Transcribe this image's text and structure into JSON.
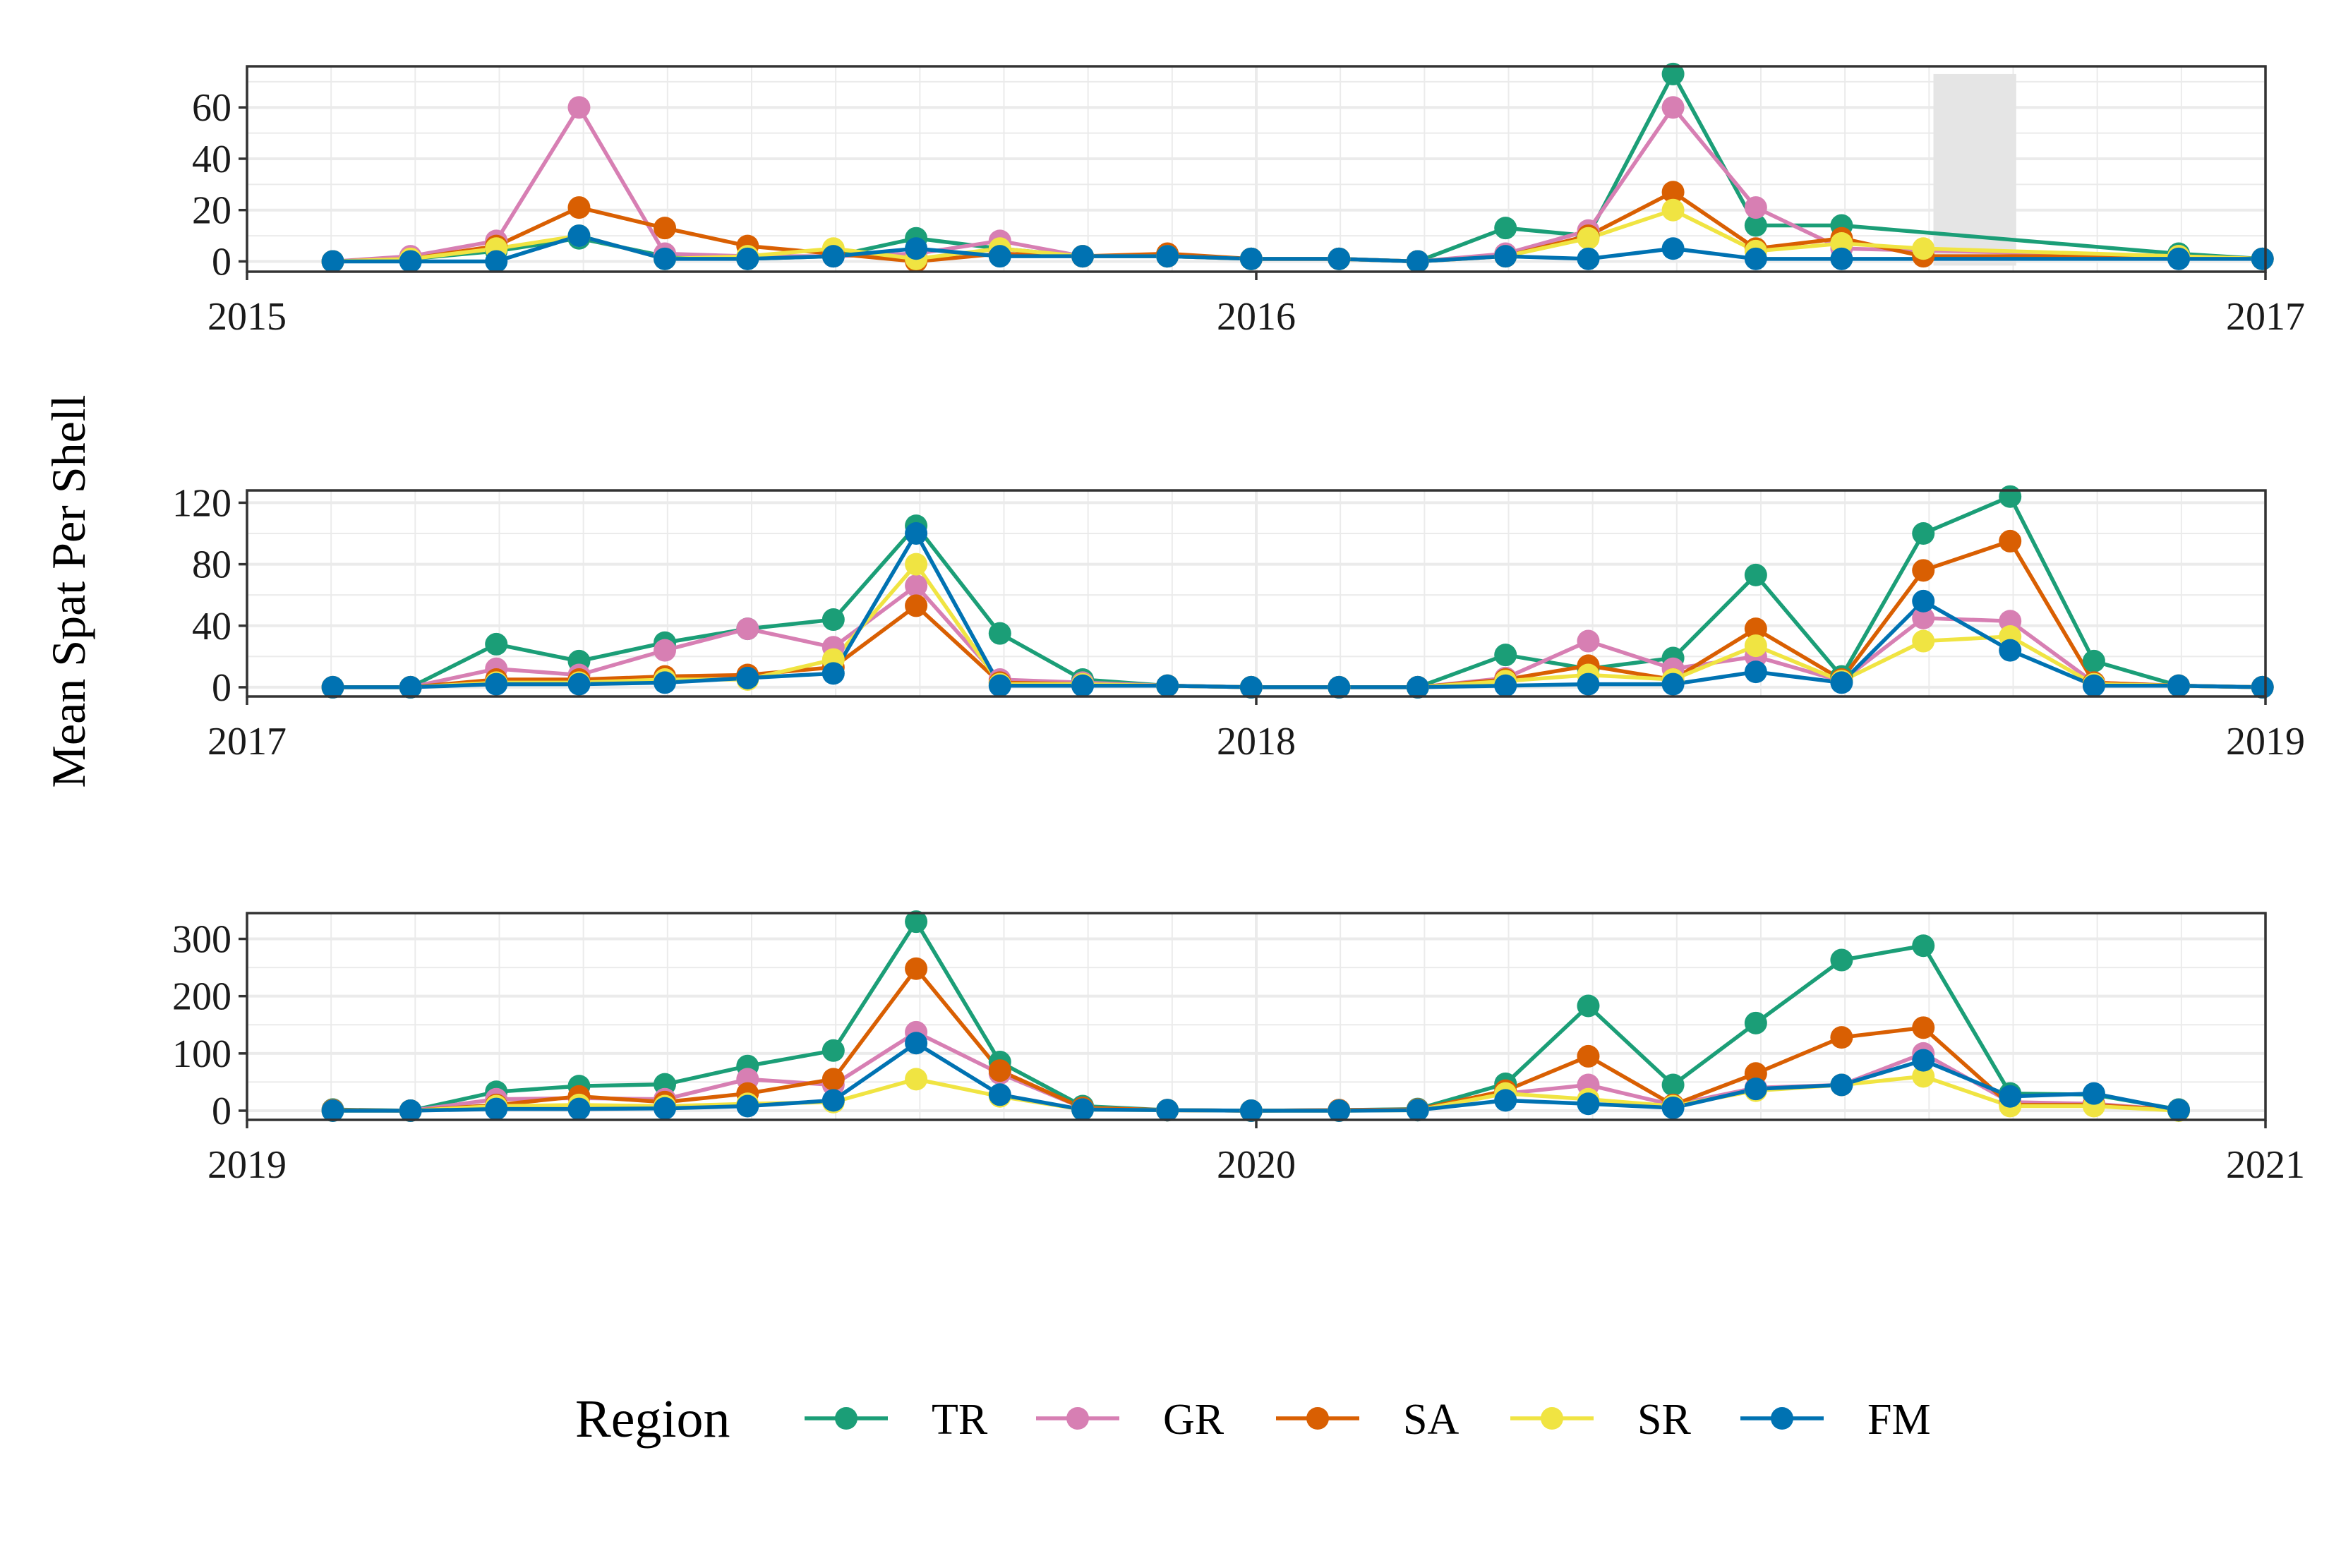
{
  "figure": {
    "ylabel": "Mean Spat Per Shell",
    "legend": {
      "title": "Region",
      "position": "bottom"
    }
  },
  "colors": {
    "TR": "#1b9e77",
    "GR": "#d77fb3",
    "SA": "#d95f02",
    "SR": "#f0e442",
    "FM": "#0072b2",
    "shade": "#e5e5e5"
  },
  "chart_data": [
    {
      "type": "line",
      "xlabel": "",
      "ylabel": "Mean Spat Per Shell",
      "xlim": [
        2015,
        2017
      ],
      "ylim": [
        -4,
        76
      ],
      "xticks": [
        2015,
        2016,
        2017
      ],
      "xtick_labels": [
        "2015",
        "2016",
        "2017"
      ],
      "yticks": [
        0,
        20,
        40,
        60
      ],
      "ytick_labels": [
        "0",
        "20",
        "40",
        "60"
      ],
      "grid": true,
      "shaded_interval": [
        2016.671,
        2016.753
      ],
      "x": [
        2015.085,
        2015.162,
        2015.247,
        2015.329,
        2015.414,
        2015.496,
        2015.581,
        2015.663,
        2015.746,
        2015.828,
        2015.912,
        2015.995,
        2016.082,
        2016.16,
        2016.247,
        2016.329,
        2016.413,
        2016.495,
        2016.58,
        2016.661,
        2016.747,
        2016.83,
        2016.914,
        2016.997
      ],
      "series": [
        {
          "name": "TR",
          "values": [
            0,
            1,
            4,
            9,
            2,
            1,
            2,
            9,
            5,
            2,
            2,
            1,
            1,
            0,
            13,
            10,
            73,
            14,
            14,
            null,
            null,
            null,
            3,
            1
          ]
        },
        {
          "name": "GR",
          "values": [
            0,
            2,
            8,
            60,
            3,
            2,
            2,
            3,
            8,
            2,
            2,
            1,
            1,
            0,
            3,
            12,
            60,
            21,
            5,
            null,
            null,
            null,
            2,
            1
          ]
        },
        {
          "name": "SA",
          "values": [
            0,
            1,
            6,
            21,
            13,
            6,
            3,
            0,
            3,
            2,
            3,
            1,
            1,
            0,
            2,
            10,
            27,
            5,
            9,
            2,
            null,
            null,
            2,
            1
          ]
        },
        {
          "name": "SR",
          "values": [
            0,
            1,
            5,
            10,
            1,
            2,
            5,
            1,
            5,
            2,
            2,
            1,
            1,
            0,
            2,
            9,
            20,
            4,
            7,
            5,
            null,
            null,
            2,
            1
          ]
        },
        {
          "name": "FM",
          "values": [
            0,
            0,
            0,
            10,
            1,
            1,
            2,
            5,
            2,
            2,
            2,
            1,
            1,
            0,
            2,
            1,
            5,
            1,
            1,
            null,
            null,
            null,
            1,
            1
          ]
        }
      ]
    },
    {
      "type": "line",
      "xlabel": "",
      "ylabel": "Mean Spat Per Shell",
      "xlim": [
        2017,
        2019
      ],
      "ylim": [
        -6,
        128
      ],
      "xticks": [
        2017,
        2018,
        2019
      ],
      "xtick_labels": [
        "2017",
        "2018",
        "2019"
      ],
      "yticks": [
        0,
        40,
        80,
        120
      ],
      "ytick_labels": [
        "0",
        "40",
        "80",
        "120"
      ],
      "grid": true,
      "x": [
        2017.085,
        2017.162,
        2017.247,
        2017.329,
        2017.414,
        2017.496,
        2017.581,
        2017.663,
        2017.746,
        2017.828,
        2017.912,
        2017.995,
        2018.082,
        2018.16,
        2018.247,
        2018.329,
        2018.413,
        2018.495,
        2018.58,
        2018.661,
        2018.747,
        2018.83,
        2018.914,
        2018.997
      ],
      "series": [
        {
          "name": "TR",
          "values": [
            0,
            0,
            28,
            17,
            29,
            38,
            44,
            105,
            35,
            5,
            1,
            0,
            0,
            0,
            21,
            12,
            19,
            73,
            7,
            100,
            124,
            17,
            1,
            0
          ]
        },
        {
          "name": "GR",
          "values": [
            0,
            0,
            12,
            8,
            24,
            38,
            26,
            66,
            5,
            3,
            1,
            0,
            0,
            0,
            6,
            30,
            12,
            20,
            4,
            45,
            43,
            3,
            1,
            0
          ]
        },
        {
          "name": "SA",
          "values": [
            0,
            0,
            5,
            5,
            7,
            8,
            13,
            53,
            3,
            2,
            1,
            0,
            0,
            0,
            5,
            14,
            5,
            38,
            5,
            76,
            95,
            3,
            1,
            0
          ]
        },
        {
          "name": "SR",
          "values": [
            0,
            0,
            3,
            3,
            5,
            5,
            18,
            80,
            2,
            2,
            1,
            0,
            0,
            0,
            4,
            8,
            5,
            27,
            4,
            30,
            33,
            2,
            1,
            0
          ]
        },
        {
          "name": "FM",
          "values": [
            0,
            0,
            2,
            2,
            3,
            6,
            9,
            100,
            1,
            1,
            1,
            0,
            0,
            0,
            1,
            2,
            2,
            10,
            3,
            56,
            24,
            1,
            1,
            0
          ]
        }
      ]
    },
    {
      "type": "line",
      "xlabel": "",
      "ylabel": "Mean Spat Per Shell",
      "xlim": [
        2019,
        2021
      ],
      "ylim": [
        -16,
        345
      ],
      "xticks": [
        2019,
        2020,
        2021
      ],
      "xtick_labels": [
        "2019",
        "2020",
        "2021"
      ],
      "yticks": [
        0,
        100,
        200,
        300
      ],
      "ytick_labels": [
        "0",
        "100",
        "200",
        "300"
      ],
      "grid": true,
      "x": [
        2019.085,
        2019.162,
        2019.247,
        2019.329,
        2019.414,
        2019.496,
        2019.581,
        2019.663,
        2019.746,
        2019.828,
        2019.912,
        2019.995,
        2020.082,
        2020.16,
        2020.247,
        2020.329,
        2020.413,
        2020.495,
        2020.58,
        2020.661,
        2020.747,
        2020.83,
        2020.914,
        2020.997
      ],
      "series": [
        {
          "name": "TR",
          "values": [
            2,
            0,
            33,
            43,
            46,
            78,
            105,
            330,
            85,
            8,
            1,
            0,
            1,
            3,
            47,
            183,
            45,
            153,
            263,
            288,
            30,
            28,
            2,
            null
          ]
        },
        {
          "name": "GR",
          "values": [
            1,
            0,
            20,
            22,
            20,
            55,
            45,
            137,
            65,
            5,
            1,
            0,
            1,
            2,
            30,
            45,
            10,
            40,
            45,
            100,
            15,
            12,
            1,
            null
          ]
        },
        {
          "name": "SA",
          "values": [
            1,
            0,
            10,
            25,
            15,
            30,
            55,
            248,
            70,
            5,
            1,
            0,
            1,
            2,
            35,
            95,
            10,
            65,
            128,
            145,
            10,
            10,
            1,
            null
          ]
        },
        {
          "name": "SR",
          "values": [
            0,
            0,
            8,
            10,
            8,
            12,
            15,
            55,
            25,
            2,
            1,
            0,
            0,
            1,
            30,
            20,
            8,
            35,
            45,
            60,
            8,
            8,
            0,
            null
          ]
        },
        {
          "name": "FM",
          "values": [
            0,
            0,
            3,
            3,
            4,
            8,
            18,
            118,
            28,
            2,
            1,
            0,
            0,
            1,
            18,
            12,
            5,
            38,
            45,
            88,
            25,
            30,
            1,
            null
          ]
        }
      ]
    }
  ]
}
